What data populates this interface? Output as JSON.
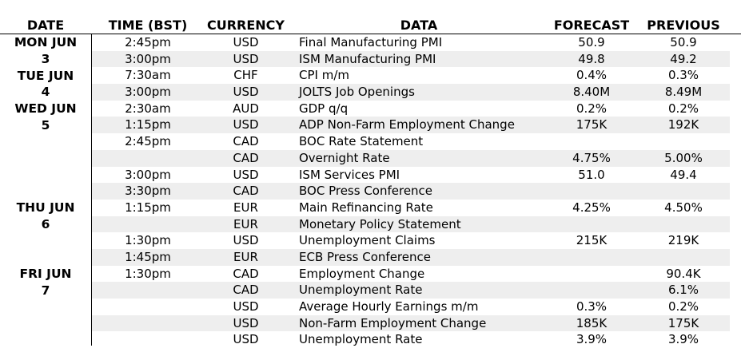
{
  "headers": {
    "date": "DATE",
    "time": "TIME (BST)",
    "currency": "CURRENCY",
    "data": "DATA",
    "forecast": "FORECAST",
    "previous": "PREVIOUS"
  },
  "dates": [
    {
      "line1": "MON JUN",
      "line2": "3"
    },
    {
      "line1": "TUE JUN",
      "line2": "4"
    },
    {
      "line1": "WED JUN",
      "line2": "5"
    },
    {
      "line1": "THU JUN",
      "line2": "6"
    },
    {
      "line1": "FRI JUN",
      "line2": "7"
    }
  ],
  "rows": [
    {
      "time": "2:45pm",
      "currency": "USD",
      "data": "Final Manufacturing PMI",
      "forecast": "50.9",
      "previous": "50.9"
    },
    {
      "time": "3:00pm",
      "currency": "USD",
      "data": "ISM Manufacturing PMI",
      "forecast": "49.8",
      "previous": "49.2"
    },
    {
      "time": "7:30am",
      "currency": "CHF",
      "data": "CPI m/m",
      "forecast": "0.4%",
      "previous": "0.3%"
    },
    {
      "time": "3:00pm",
      "currency": "USD",
      "data": "JOLTS Job Openings",
      "forecast": "8.40M",
      "previous": "8.49M"
    },
    {
      "time": "2:30am",
      "currency": "AUD",
      "data": "GDP q/q",
      "forecast": "0.2%",
      "previous": "0.2%"
    },
    {
      "time": "1:15pm",
      "currency": "USD",
      "data": "ADP Non-Farm Employment Change",
      "forecast": "175K",
      "previous": "192K"
    },
    {
      "time": "2:45pm",
      "currency": "CAD",
      "data": "BOC Rate Statement",
      "forecast": "",
      "previous": ""
    },
    {
      "time": "",
      "currency": "CAD",
      "data": "Overnight Rate",
      "forecast": "4.75%",
      "previous": "5.00%"
    },
    {
      "time": "3:00pm",
      "currency": "USD",
      "data": "ISM Services PMI",
      "forecast": "51.0",
      "previous": "49.4"
    },
    {
      "time": "3:30pm",
      "currency": "CAD",
      "data": "BOC Press Conference",
      "forecast": "",
      "previous": ""
    },
    {
      "time": "1:15pm",
      "currency": "EUR",
      "data": "Main Refinancing Rate",
      "forecast": "4.25%",
      "previous": "4.50%"
    },
    {
      "time": "",
      "currency": "EUR",
      "data": "Monetary Policy Statement",
      "forecast": "",
      "previous": ""
    },
    {
      "time": "1:30pm",
      "currency": "USD",
      "data": "Unemployment Claims",
      "forecast": "215K",
      "previous": "219K"
    },
    {
      "time": "1:45pm",
      "currency": "EUR",
      "data": "ECB Press Conference",
      "forecast": "",
      "previous": ""
    },
    {
      "time": "1:30pm",
      "currency": "CAD",
      "data": "Employment Change",
      "forecast": "",
      "previous": "90.4K"
    },
    {
      "time": "",
      "currency": "CAD",
      "data": "Unemployment Rate",
      "forecast": "",
      "previous": "6.1%"
    },
    {
      "time": "",
      "currency": "USD",
      "data": "Average Hourly Earnings m/m",
      "forecast": "0.3%",
      "previous": "0.2%"
    },
    {
      "time": "",
      "currency": "USD",
      "data": "Non-Farm Employment Change",
      "forecast": "185K",
      "previous": "175K"
    },
    {
      "time": "",
      "currency": "USD",
      "data": "Unemployment Rate",
      "forecast": "3.9%",
      "previous": "3.9%"
    }
  ]
}
